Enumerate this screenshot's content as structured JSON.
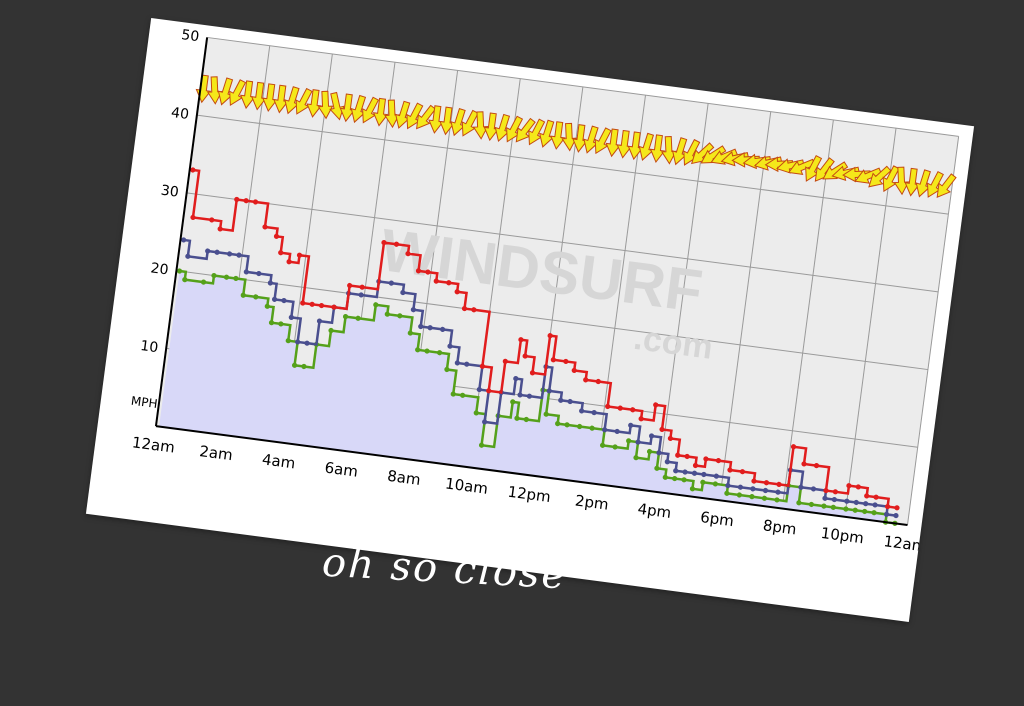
{
  "caption": "oh so close",
  "chart_data": {
    "type": "line",
    "title": "",
    "xlabel": "",
    "ylabel": "MPH",
    "ylim": [
      0,
      50
    ],
    "yticks": [
      10,
      20,
      30,
      40,
      50
    ],
    "xlim": [
      0,
      24
    ],
    "xticks": [
      {
        "v": 0,
        "label": "12am"
      },
      {
        "v": 2,
        "label": "2am"
      },
      {
        "v": 4,
        "label": "4am"
      },
      {
        "v": 6,
        "label": "6am"
      },
      {
        "v": 8,
        "label": "8am"
      },
      {
        "v": 10,
        "label": "10am"
      },
      {
        "v": 12,
        "label": "12pm"
      },
      {
        "v": 14,
        "label": "2pm"
      },
      {
        "v": 16,
        "label": "4pm"
      },
      {
        "v": 18,
        "label": "6pm"
      },
      {
        "v": 20,
        "label": "8pm"
      },
      {
        "v": 22,
        "label": "10pm"
      },
      {
        "v": 24,
        "label": "12am"
      }
    ],
    "grid": true,
    "watermark": [
      "WINDSURF",
      ".com"
    ],
    "colors": {
      "gust": "#e11d1d",
      "avg": "#4a4f8f",
      "lull": "#55a11a",
      "fill": "#d8d8f8",
      "plot_bg": "#ececec",
      "arrow": "#f5e81a"
    },
    "series": [
      {
        "key": "gust",
        "x": [
          0.1,
          0.3,
          0.9,
          1.2,
          1.6,
          1.9,
          2.2,
          2.6,
          3,
          3.2,
          3.5,
          3.8,
          4.1,
          4.4,
          4.7,
          5.1,
          5.5,
          5.9,
          6.4,
          6.8,
          7.2,
          7.6,
          7.9,
          8.2,
          8.6,
          8.9,
          9.2,
          9.5,
          10,
          10.3,
          10.7,
          11.1,
          11.3,
          11.6,
          12,
          12.2,
          12.6,
          12.9,
          13.3,
          13.7,
          14.1,
          14.5,
          14.9,
          15.2,
          15.6,
          15.9,
          16.2,
          16.5,
          16.8,
          17.1,
          17.4,
          17.8,
          18.2,
          18.6,
          19,
          19.4,
          19.8,
          20.1,
          20.5,
          20.9,
          21.3,
          21.6,
          22,
          22.3,
          22.6,
          22.9,
          23.3,
          23.6
        ],
        "y": [
          33,
          27,
          27,
          26,
          30,
          30,
          30,
          27,
          26,
          24,
          23,
          24,
          18,
          18,
          18,
          18,
          21,
          21,
          27,
          27,
          26,
          24,
          24,
          23,
          23,
          22,
          20,
          20,
          13,
          10,
          14,
          17,
          15,
          13,
          18,
          15,
          15,
          14,
          13,
          13,
          10,
          10,
          10,
          9,
          11,
          8,
          7,
          5,
          5,
          4,
          5,
          5,
          4,
          4,
          3,
          3,
          3,
          8,
          6,
          6,
          3,
          3,
          4,
          4,
          3,
          3,
          2,
          2
        ]
      },
      {
        "key": "avg",
        "x": [
          0.1,
          0.3,
          0.9,
          1.2,
          1.6,
          1.9,
          2.2,
          2.6,
          3,
          3.2,
          3.5,
          3.8,
          4.1,
          4.4,
          4.7,
          5.1,
          5.5,
          5.9,
          6.4,
          6.8,
          7.2,
          7.6,
          7.9,
          8.2,
          8.6,
          8.9,
          9.2,
          9.5,
          10,
          10.3,
          10.7,
          11.1,
          11.3,
          11.6,
          12,
          12.2,
          12.6,
          12.9,
          13.3,
          13.7,
          14.1,
          14.5,
          14.9,
          15.2,
          15.6,
          15.9,
          16.2,
          16.5,
          16.8,
          17.1,
          17.4,
          17.8,
          18.2,
          18.6,
          19,
          19.4,
          19.8,
          20.1,
          20.5,
          20.9,
          21.3,
          21.6,
          22,
          22.3,
          22.6,
          22.9,
          23.3,
          23.6
        ],
        "y": [
          24,
          22,
          23,
          23,
          23,
          23,
          21,
          21,
          20,
          18,
          18,
          16,
          13,
          13,
          16,
          18,
          20,
          20,
          22,
          22,
          21,
          19,
          17,
          17,
          17,
          15,
          13,
          13,
          10,
          6,
          10,
          12,
          10,
          10,
          14,
          11,
          10,
          10,
          9,
          9,
          7,
          7,
          8,
          6,
          7,
          5,
          4,
          3,
          3,
          3,
          3,
          3,
          2,
          2,
          2,
          2,
          2,
          5,
          3,
          3,
          2,
          2,
          2,
          2,
          2,
          2,
          1,
          1
        ]
      },
      {
        "key": "lull",
        "x": [
          0.1,
          0.3,
          0.9,
          1.2,
          1.6,
          1.9,
          2.2,
          2.6,
          3,
          3.2,
          3.5,
          3.8,
          4.1,
          4.4,
          4.7,
          5.1,
          5.5,
          5.9,
          6.4,
          6.8,
          7.2,
          7.6,
          7.9,
          8.2,
          8.6,
          8.9,
          9.2,
          9.5,
          10,
          10.3,
          10.7,
          11.1,
          11.3,
          11.6,
          12,
          12.2,
          12.6,
          12.9,
          13.3,
          13.7,
          14.1,
          14.5,
          14.9,
          15.2,
          15.6,
          15.9,
          16.2,
          16.5,
          16.8,
          17.1,
          17.4,
          17.8,
          18.2,
          18.6,
          19,
          19.4,
          19.8,
          20.1,
          20.5,
          20.9,
          21.3,
          21.6,
          22,
          22.3,
          22.6,
          22.9,
          23.3,
          23.6
        ],
        "y": [
          20,
          19,
          19,
          20,
          20,
          20,
          18,
          18,
          17,
          15,
          15,
          13,
          10,
          10,
          13,
          15,
          17,
          17,
          19,
          18,
          18,
          16,
          14,
          14,
          14,
          12,
          9,
          9,
          7,
          3,
          7,
          9,
          7,
          7,
          11,
          8,
          7,
          7,
          7,
          7,
          5,
          5,
          6,
          4,
          5,
          3,
          2,
          2,
          2,
          1,
          2,
          2,
          1,
          1,
          1,
          1,
          1,
          3,
          1,
          1,
          1,
          1,
          1,
          1,
          1,
          1,
          0,
          0
        ]
      }
    ],
    "direction_arrows": [
      180,
      170,
      190,
      200,
      180,
      180,
      180,
      180,
      190,
      200,
      180,
      170,
      160,
      180,
      190,
      200,
      180,
      170,
      190,
      200,
      210,
      180,
      180,
      190,
      200,
      170,
      180,
      190,
      200,
      210,
      200,
      190,
      180,
      170,
      180,
      190,
      200,
      180,
      180,
      180,
      190,
      180,
      170,
      190,
      200,
      220,
      230,
      240,
      250,
      260,
      255,
      250,
      260,
      250,
      240,
      200,
      210,
      230,
      250,
      260,
      240,
      220,
      200,
      170,
      180,
      190,
      200,
      210
    ]
  }
}
